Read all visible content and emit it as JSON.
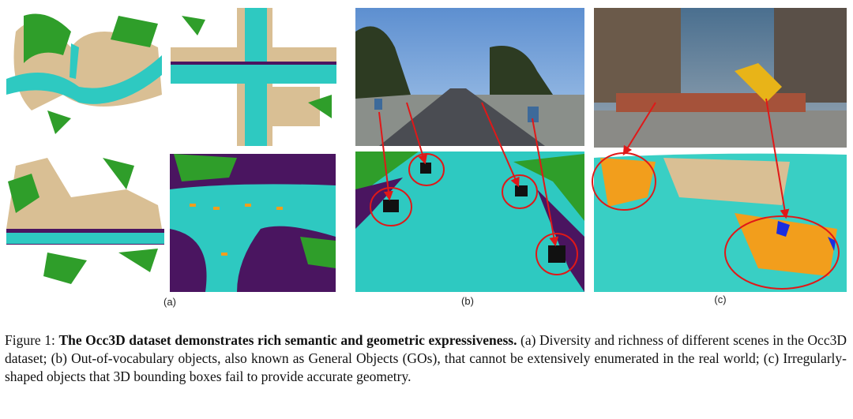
{
  "panels": [
    {
      "label": "(a)"
    },
    {
      "label": "(b)"
    },
    {
      "label": "(c)"
    }
  ],
  "caption": {
    "prefix": "Figure 1:",
    "title": "The Occ3D dataset demonstrates rich semantic and geometric expressiveness.",
    "body": "(a) Diversity and richness of different scenes in the Occ3D dataset; (b) Out-of-vocabulary objects, also known as General Objects (GOs), that cannot be extensively enumerated in the real world; (c) Irregularly-shaped objects that 3D bounding boxes fail to provide accurate geometry."
  }
}
